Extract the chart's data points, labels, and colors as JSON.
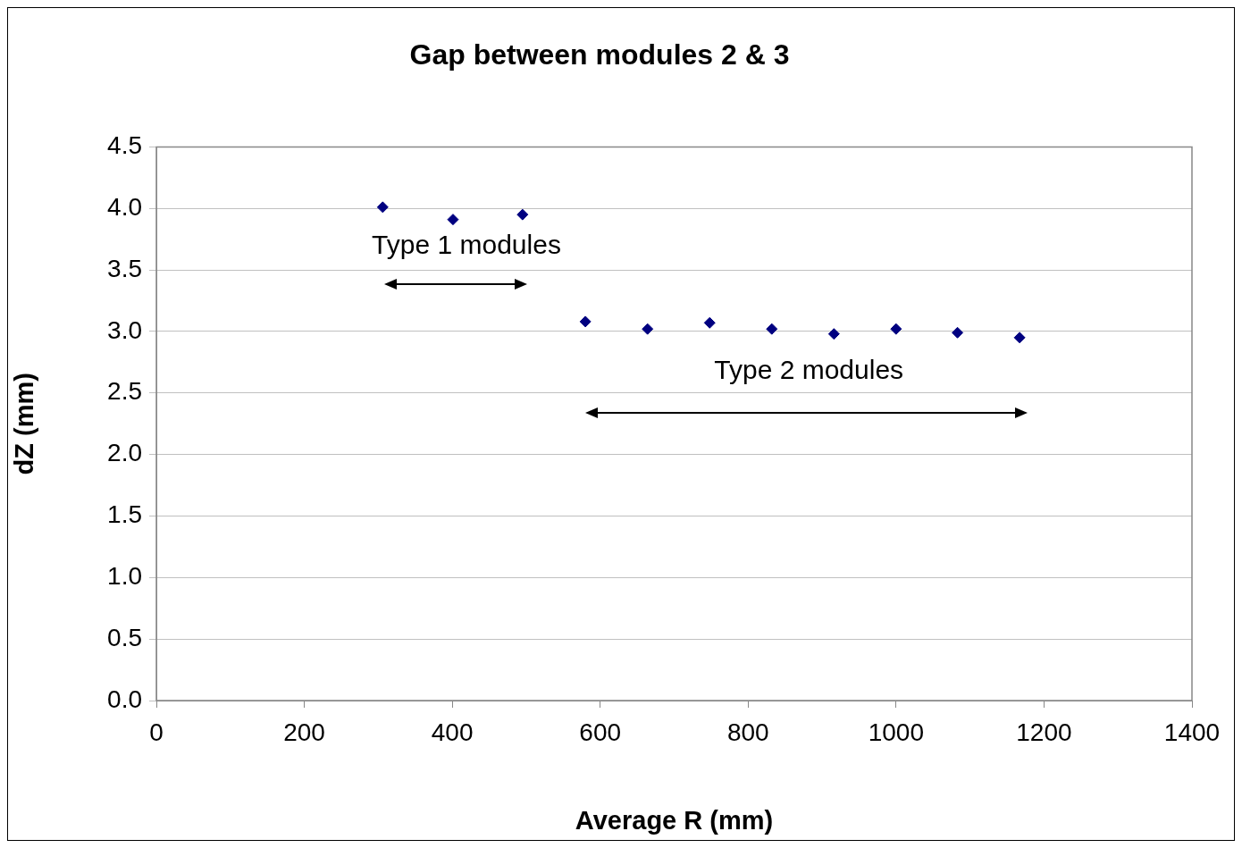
{
  "chart_data": {
    "type": "scatter",
    "title": "Gap between modules 2 & 3",
    "xlabel": "Average R (mm)",
    "ylabel": "dZ (mm)",
    "x": [
      306,
      401,
      495,
      580,
      664,
      748,
      832,
      916,
      1000,
      1083,
      1167
    ],
    "values": [
      4.01,
      3.91,
      3.95,
      3.08,
      3.02,
      3.07,
      3.02,
      2.98,
      3.02,
      2.99,
      2.95
    ],
    "color": "#000080",
    "marker": "diamond",
    "grid": "y",
    "legend": false,
    "xlim": [
      0,
      1400
    ],
    "xticks": [
      0,
      200,
      400,
      600,
      800,
      1000,
      1200,
      1400
    ],
    "ylim": [
      0,
      4.5
    ],
    "yticks": [
      {
        "value": 0,
        "label": "0.0"
      },
      {
        "value": 0.5,
        "label": "0.5"
      },
      {
        "value": 1,
        "label": "1.0"
      },
      {
        "value": 1.5,
        "label": "1.5"
      },
      {
        "value": 2,
        "label": "2.0"
      },
      {
        "value": 2.5,
        "label": "2.5"
      },
      {
        "value": 3,
        "label": "3.0"
      },
      {
        "value": 3.5,
        "label": "3.5"
      },
      {
        "value": 4,
        "label": "4.0"
      },
      {
        "value": 4.5,
        "label": "4.5"
      }
    ],
    "annotations": [
      "Type 1 modules",
      "Type 2 modules"
    ]
  }
}
